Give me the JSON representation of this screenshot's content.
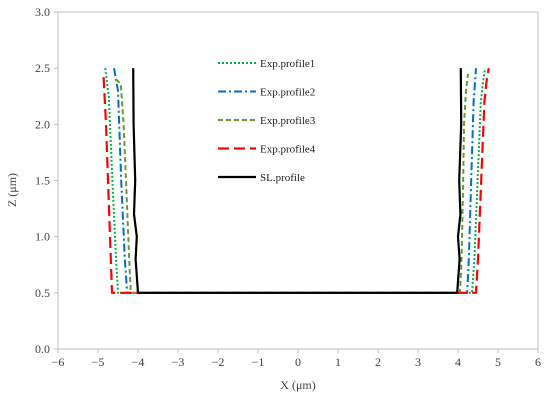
{
  "chart_data": {
    "type": "line",
    "xlabel": "X (μm)",
    "ylabel": "Z (μm)",
    "xlim": [
      -6,
      6
    ],
    "ylim": [
      0,
      3
    ],
    "x_ticks": [
      "−6",
      "−5",
      "−4",
      "−3",
      "−2",
      "−1",
      "0",
      "1",
      "2",
      "3",
      "4",
      "5",
      "6"
    ],
    "y_ticks": [
      "0.0",
      "0.5",
      "1.0",
      "1.5",
      "2.0",
      "2.5",
      "3.0"
    ],
    "grid": false,
    "legend_position": "top-center",
    "series": [
      {
        "name": "Exp.profile1",
        "color": "#00b050",
        "dash": "dotted",
        "points": [
          [
            -4.82,
            2.5
          ],
          [
            -4.73,
            2.25
          ],
          [
            -4.64,
            1.5
          ],
          [
            -4.55,
            0.8
          ],
          [
            -4.5,
            0.5
          ],
          [
            4.35,
            0.5
          ],
          [
            4.41,
            0.8
          ],
          [
            4.49,
            1.5
          ],
          [
            4.57,
            2.2
          ],
          [
            4.64,
            2.42
          ],
          [
            4.68,
            2.5
          ]
        ]
      },
      {
        "name": "Exp.profile2",
        "color": "#0070c0",
        "dash": "dashdot",
        "points": [
          [
            -4.6,
            2.5
          ],
          [
            -4.5,
            2.3
          ],
          [
            -4.42,
            1.5
          ],
          [
            -4.33,
            0.8
          ],
          [
            -4.27,
            0.5
          ],
          [
            4.23,
            0.5
          ],
          [
            4.27,
            0.8
          ],
          [
            4.33,
            1.5
          ],
          [
            4.39,
            2.2
          ],
          [
            4.45,
            2.5
          ]
        ]
      },
      {
        "name": "Exp.profile3",
        "color": "#669933",
        "dash": "dashed",
        "points": [
          [
            -4.55,
            2.4
          ],
          [
            -4.43,
            2.36
          ],
          [
            -4.36,
            2.0
          ],
          [
            -4.3,
            1.5
          ],
          [
            -4.22,
            0.8
          ],
          [
            -4.18,
            0.5
          ],
          [
            4.05,
            0.5
          ],
          [
            4.09,
            0.8
          ],
          [
            4.13,
            1.5
          ],
          [
            4.15,
            2.0
          ],
          [
            4.2,
            2.3
          ],
          [
            4.25,
            2.45
          ]
        ]
      },
      {
        "name": "Exp.profile4",
        "color": "#ff0000",
        "dash": "longdash",
        "points": [
          [
            -4.86,
            2.42
          ],
          [
            -4.8,
            2.0
          ],
          [
            -4.75,
            1.5
          ],
          [
            -4.7,
            1.0
          ],
          [
            -4.65,
            0.5
          ],
          [
            4.45,
            0.5
          ],
          [
            4.5,
            0.8
          ],
          [
            4.58,
            1.5
          ],
          [
            4.66,
            2.2
          ],
          [
            4.72,
            2.4
          ],
          [
            4.77,
            2.5
          ]
        ]
      },
      {
        "name": "SL.profile",
        "color": "#000000",
        "dash": "solid",
        "points": [
          [
            -4.12,
            2.5
          ],
          [
            -4.11,
            2.0
          ],
          [
            -4.07,
            1.5
          ],
          [
            -4.1,
            1.2
          ],
          [
            -4.03,
            1.0
          ],
          [
            -4.06,
            0.8
          ],
          [
            -4.0,
            0.5
          ],
          [
            3.98,
            0.5
          ],
          [
            4.04,
            0.8
          ],
          [
            4.0,
            1.0
          ],
          [
            4.06,
            1.2
          ],
          [
            4.03,
            1.5
          ],
          [
            4.08,
            2.0
          ],
          [
            4.07,
            2.5
          ]
        ]
      }
    ]
  }
}
